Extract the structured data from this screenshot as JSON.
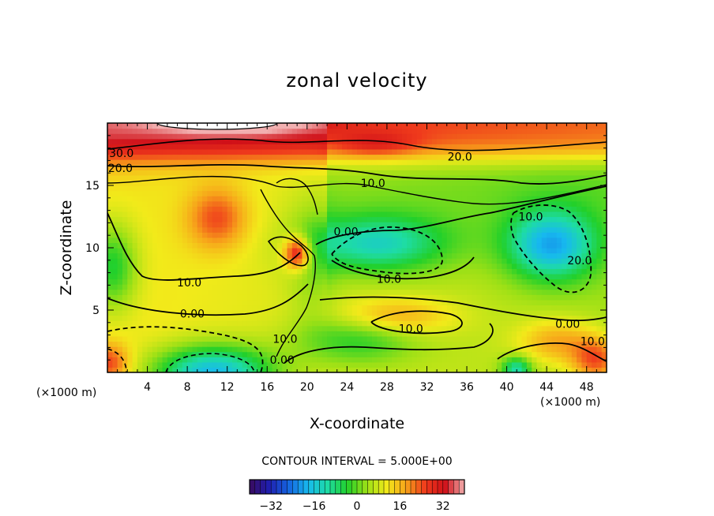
{
  "chart_data": {
    "type": "heatmap",
    "title": "zonal velocity",
    "xlabel": "X-coordinate",
    "ylabel": "Z-coordinate",
    "x_unit_left": "(×1000 m)",
    "x_unit_right": "(×1000 m)",
    "xlim": [
      0,
      50
    ],
    "ylim": [
      0,
      20
    ],
    "x_ticks": [
      4,
      8,
      12,
      16,
      20,
      24,
      28,
      32,
      36,
      40,
      44,
      48
    ],
    "x_tick_labels": [
      "4",
      "8",
      "12",
      "16",
      "20",
      "24",
      "28",
      "32",
      "36",
      "40",
      "44",
      "48"
    ],
    "y_ticks": [
      5,
      10,
      15
    ],
    "y_tick_labels": [
      "5",
      "10",
      "15"
    ],
    "contour_interval_text": "CONTOUR INTERVAL = 5.000E+00",
    "colorbar": {
      "range": [
        -40,
        40
      ],
      "ticks": [
        -32,
        -16,
        0,
        16,
        32
      ],
      "tick_labels": [
        "−32",
        "−16",
        "0",
        "16",
        "32"
      ],
      "colors": [
        "#3a0a5e",
        "#1f1fb0",
        "#1565e0",
        "#17b9ef",
        "#1edca4",
        "#22d02a",
        "#9ce016",
        "#f2ea1a",
        "#f7a31a",
        "#ef3a1c",
        "#d01018",
        "#f2b0b0"
      ]
    },
    "contour_labels": [
      {
        "text": "30.0",
        "x": 1.4,
        "y": 17.6
      },
      {
        "text": "20.0",
        "x": 1.3,
        "y": 16.4
      },
      {
        "text": "20.0",
        "x": 35.3,
        "y": 17.3
      },
      {
        "text": "10.0",
        "x": 26.6,
        "y": 15.2
      },
      {
        "text": "0.00",
        "x": 23.9,
        "y": 11.3
      },
      {
        "text": "10.0",
        "x": 8.2,
        "y": 7.2
      },
      {
        "text": "10.0",
        "x": 28.2,
        "y": 7.5
      },
      {
        "text": "10.0",
        "x": 30.4,
        "y": 3.5
      },
      {
        "text": "0.00",
        "x": 8.5,
        "y": 4.7
      },
      {
        "text": "10.0",
        "x": 17.8,
        "y": 2.7
      },
      {
        "text": "0.00",
        "x": 17.5,
        "y": 1.0
      },
      {
        "text": "10.0",
        "x": 42.4,
        "y": 12.5
      },
      {
        "text": "20.0",
        "x": 47.3,
        "y": 9.0
      },
      {
        "text": "0.00",
        "x": 46.1,
        "y": 3.9
      },
      {
        "text": "10.0",
        "x": 48.6,
        "y": 2.5
      }
    ]
  }
}
